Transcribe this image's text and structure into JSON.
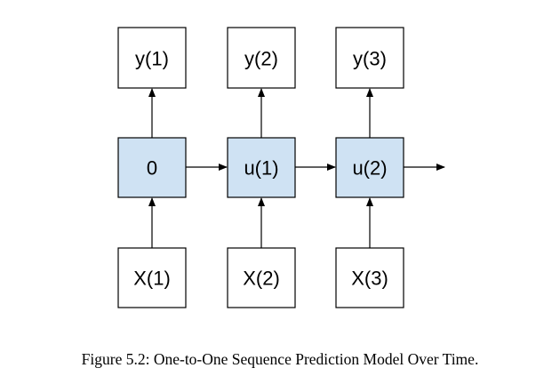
{
  "diagram": {
    "outputs": [
      "y(1)",
      "y(2)",
      "y(3)"
    ],
    "states": [
      "0",
      "u(1)",
      "u(2)"
    ],
    "inputs": [
      "X(1)",
      "X(2)",
      "X(3)"
    ],
    "colors": {
      "state_fill": "#cfe2f3",
      "plain_fill": "#ffffff",
      "stroke": "#000000"
    }
  },
  "caption": "Figure 5.2: One-to-One Sequence Prediction Model Over Time."
}
